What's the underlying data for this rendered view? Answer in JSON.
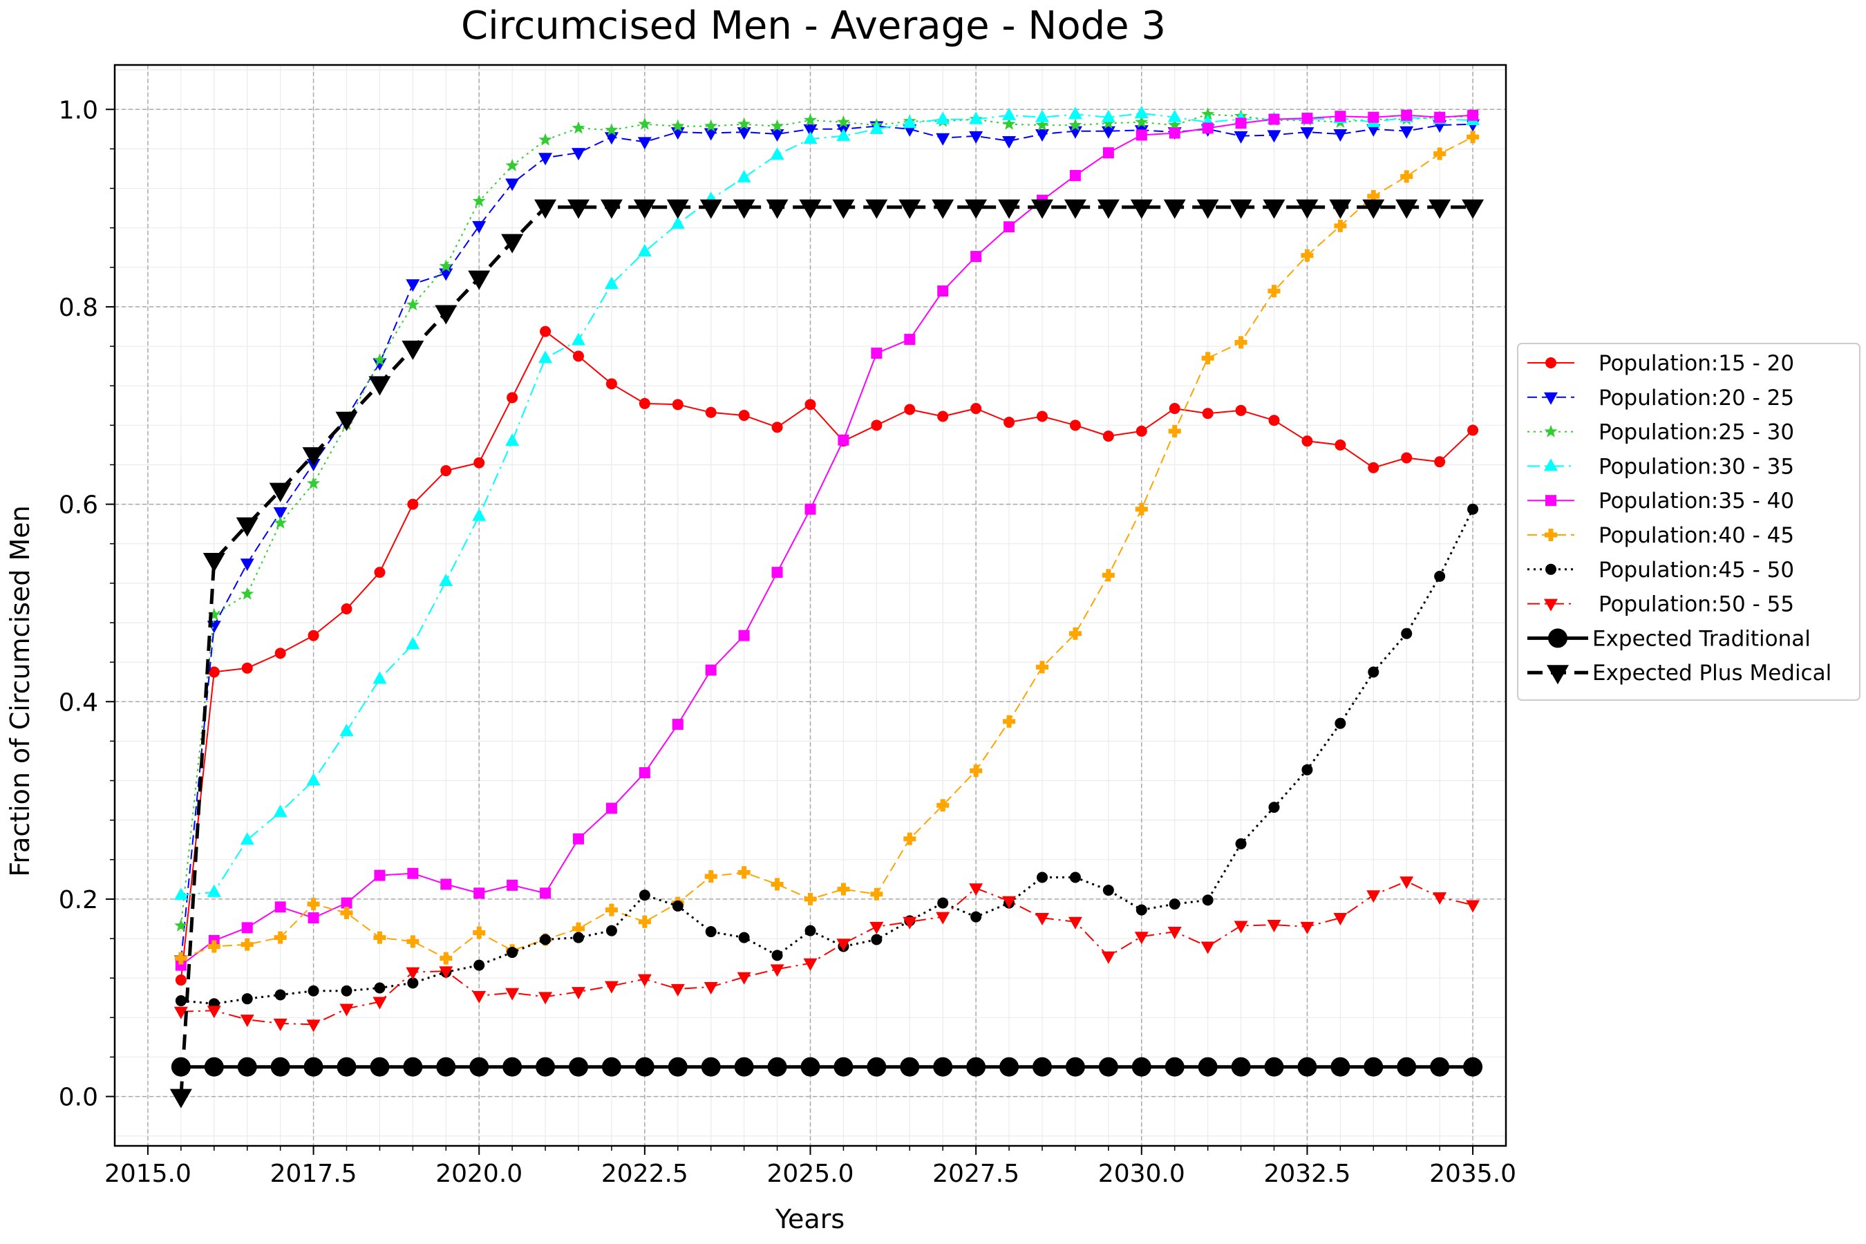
{
  "chart_data": {
    "type": "line",
    "title": "Circumcised Men - Average - Node 3",
    "xlabel": "Years",
    "ylabel": "Fraction of Circumcised Men",
    "xlim": [
      2014.5,
      2035.5
    ],
    "ylim": [
      -0.05,
      1.045
    ],
    "grid": true,
    "legend_position": "right, outside plot",
    "xticks": [
      2015.0,
      2017.5,
      2020.0,
      2022.5,
      2025.0,
      2027.5,
      2030.0,
      2032.5,
      2035.0
    ],
    "xtick_labels": [
      "2015.0",
      "2017.5",
      "2020.0",
      "2022.5",
      "2025.0",
      "2027.5",
      "2030.0",
      "2032.5",
      "2035.0"
    ],
    "yticks": [
      0.0,
      0.2,
      0.4,
      0.6,
      0.8,
      1.0
    ],
    "ytick_labels": [
      "0.0",
      "0.2",
      "0.4",
      "0.6",
      "0.8",
      "1.0"
    ],
    "x": [
      2015.5,
      2016.0,
      2016.5,
      2017.0,
      2017.5,
      2018.0,
      2018.5,
      2019.0,
      2019.5,
      2020.0,
      2020.5,
      2021.0,
      2021.5,
      2022.0,
      2022.5,
      2023.0,
      2023.5,
      2024.0,
      2024.5,
      2025.0,
      2025.5,
      2026.0,
      2026.5,
      2027.0,
      2027.5,
      2028.0,
      2028.5,
      2029.0,
      2029.5,
      2030.0,
      2030.5,
      2031.0,
      2031.5,
      2032.0,
      2032.5,
      2033.0,
      2033.5,
      2034.0,
      2034.5,
      2035.0
    ],
    "series": [
      {
        "name": "Population:15 - 20",
        "color": "#ff0000",
        "dash": "solid",
        "marker": "circle",
        "width": 2,
        "values": [
          0.118,
          0.43,
          0.434,
          0.449,
          0.467,
          0.494,
          0.531,
          0.6,
          0.634,
          0.642,
          0.708,
          0.775,
          0.75,
          0.722,
          0.702,
          0.701,
          0.693,
          0.69,
          0.678,
          0.701,
          0.664,
          0.68,
          0.696,
          0.689,
          0.697,
          0.683,
          0.689,
          0.68,
          0.669,
          0.674,
          0.697,
          0.692,
          0.695,
          0.685,
          0.664,
          0.66,
          0.637,
          0.647,
          0.643,
          0.675
        ]
      },
      {
        "name": "Population:20 - 25",
        "color": "#0000ff",
        "dash": "dashed",
        "marker": "triangle-down",
        "width": 2,
        "values": [
          0.138,
          0.477,
          0.54,
          0.592,
          0.641,
          0.688,
          0.743,
          0.823,
          0.834,
          0.882,
          0.925,
          0.951,
          0.956,
          0.972,
          0.967,
          0.977,
          0.976,
          0.977,
          0.975,
          0.98,
          0.98,
          0.983,
          0.98,
          0.971,
          0.973,
          0.968,
          0.975,
          0.978,
          0.978,
          0.979,
          0.977,
          0.98,
          0.973,
          0.974,
          0.977,
          0.975,
          0.98,
          0.978,
          0.984,
          0.985
        ]
      },
      {
        "name": "Population:25 - 30",
        "color": "#32cd32",
        "dash": "dotted",
        "marker": "star",
        "width": 2,
        "values": [
          0.173,
          0.488,
          0.509,
          0.581,
          0.621,
          0.681,
          0.746,
          0.802,
          0.841,
          0.907,
          0.943,
          0.969,
          0.981,
          0.979,
          0.985,
          0.983,
          0.983,
          0.985,
          0.983,
          0.989,
          0.987,
          0.984,
          0.988,
          0.988,
          0.99,
          0.985,
          0.984,
          0.984,
          0.986,
          0.987,
          0.984,
          0.995,
          0.993,
          0.989,
          0.989,
          0.987,
          0.99,
          0.99,
          0.992,
          0.993
        ]
      },
      {
        "name": "Population:30 - 35",
        "color": "#00ffff",
        "dash": "dashdot",
        "marker": "triangle-up",
        "width": 2,
        "values": [
          0.204,
          0.207,
          0.26,
          0.288,
          0.32,
          0.37,
          0.423,
          0.458,
          0.522,
          0.588,
          0.664,
          0.748,
          0.766,
          0.823,
          0.856,
          0.884,
          0.909,
          0.931,
          0.954,
          0.97,
          0.973,
          0.98,
          0.986,
          0.99,
          0.99,
          0.994,
          0.992,
          0.995,
          0.992,
          0.996,
          0.992,
          0.987,
          0.99,
          0.99,
          0.99,
          0.991,
          0.987,
          0.992,
          0.99,
          0.989
        ]
      },
      {
        "name": "Population:35 - 40",
        "color": "#ff00ff",
        "dash": "solid",
        "marker": "square",
        "width": 2,
        "values": [
          0.133,
          0.158,
          0.171,
          0.192,
          0.181,
          0.196,
          0.224,
          0.226,
          0.215,
          0.206,
          0.214,
          0.206,
          0.261,
          0.292,
          0.328,
          0.377,
          0.432,
          0.467,
          0.531,
          0.595,
          0.665,
          0.753,
          0.767,
          0.816,
          0.851,
          0.881,
          0.908,
          0.933,
          0.956,
          0.974,
          0.976,
          0.981,
          0.986,
          0.99,
          0.991,
          0.993,
          0.992,
          0.994,
          0.992,
          0.994
        ]
      },
      {
        "name": "Population:40 - 45",
        "color": "#ffa500",
        "dash": "dashed",
        "marker": "plus",
        "width": 2,
        "values": [
          0.14,
          0.152,
          0.154,
          0.161,
          0.195,
          0.186,
          0.161,
          0.157,
          0.14,
          0.166,
          0.148,
          0.159,
          0.17,
          0.189,
          0.177,
          0.196,
          0.223,
          0.227,
          0.215,
          0.2,
          0.21,
          0.205,
          0.261,
          0.295,
          0.33,
          0.38,
          0.435,
          0.469,
          0.528,
          0.595,
          0.674,
          0.748,
          0.764,
          0.816,
          0.852,
          0.882,
          0.912,
          0.932,
          0.955,
          0.972
        ]
      },
      {
        "name": "Population:45 - 50",
        "color": "#000000",
        "dash": "dotted",
        "marker": "circle",
        "width": 3,
        "values": [
          0.097,
          0.094,
          0.099,
          0.103,
          0.107,
          0.107,
          0.11,
          0.115,
          0.126,
          0.133,
          0.146,
          0.159,
          0.161,
          0.168,
          0.204,
          0.193,
          0.167,
          0.161,
          0.143,
          0.168,
          0.152,
          0.159,
          0.178,
          0.196,
          0.182,
          0.196,
          0.222,
          0.222,
          0.209,
          0.189,
          0.195,
          0.199,
          0.256,
          0.293,
          0.331,
          0.378,
          0.43,
          0.469,
          0.527,
          0.595
        ]
      },
      {
        "name": "Population:50 - 55",
        "color": "#ff0000",
        "dash": "dashdot",
        "marker": "triangle-down",
        "width": 2,
        "values": [
          0.086,
          0.087,
          0.078,
          0.074,
          0.073,
          0.089,
          0.096,
          0.126,
          0.127,
          0.102,
          0.105,
          0.101,
          0.106,
          0.112,
          0.119,
          0.109,
          0.111,
          0.121,
          0.129,
          0.135,
          0.155,
          0.172,
          0.177,
          0.182,
          0.211,
          0.198,
          0.181,
          0.177,
          0.142,
          0.162,
          0.167,
          0.152,
          0.173,
          0.174,
          0.172,
          0.181,
          0.204,
          0.218,
          0.202,
          0.194
        ]
      },
      {
        "name": "Expected Traditional",
        "color": "#000000",
        "dash": "solid",
        "marker": "circle-large",
        "width": 5,
        "values": [
          0.03,
          0.03,
          0.03,
          0.03,
          0.03,
          0.03,
          0.03,
          0.03,
          0.03,
          0.03,
          0.03,
          0.03,
          0.03,
          0.03,
          0.03,
          0.03,
          0.03,
          0.03,
          0.03,
          0.03,
          0.03,
          0.03,
          0.03,
          0.03,
          0.03,
          0.03,
          0.03,
          0.03,
          0.03,
          0.03,
          0.03,
          0.03,
          0.03,
          0.03,
          0.03,
          0.03,
          0.03,
          0.03,
          0.03,
          0.03
        ]
      },
      {
        "name": "Expected Plus Medical",
        "color": "#000000",
        "dash": "dashed-thick",
        "marker": "triangle-down-large",
        "width": 5,
        "values": [
          0.0,
          0.543,
          0.579,
          0.614,
          0.65,
          0.686,
          0.722,
          0.758,
          0.794,
          0.829,
          0.866,
          0.901,
          0.901,
          0.901,
          0.901,
          0.901,
          0.901,
          0.901,
          0.901,
          0.901,
          0.901,
          0.901,
          0.901,
          0.901,
          0.901,
          0.901,
          0.901,
          0.901,
          0.901,
          0.901,
          0.901,
          0.901,
          0.901,
          0.901,
          0.901,
          0.901,
          0.901,
          0.901,
          0.901,
          0.901
        ]
      }
    ]
  }
}
